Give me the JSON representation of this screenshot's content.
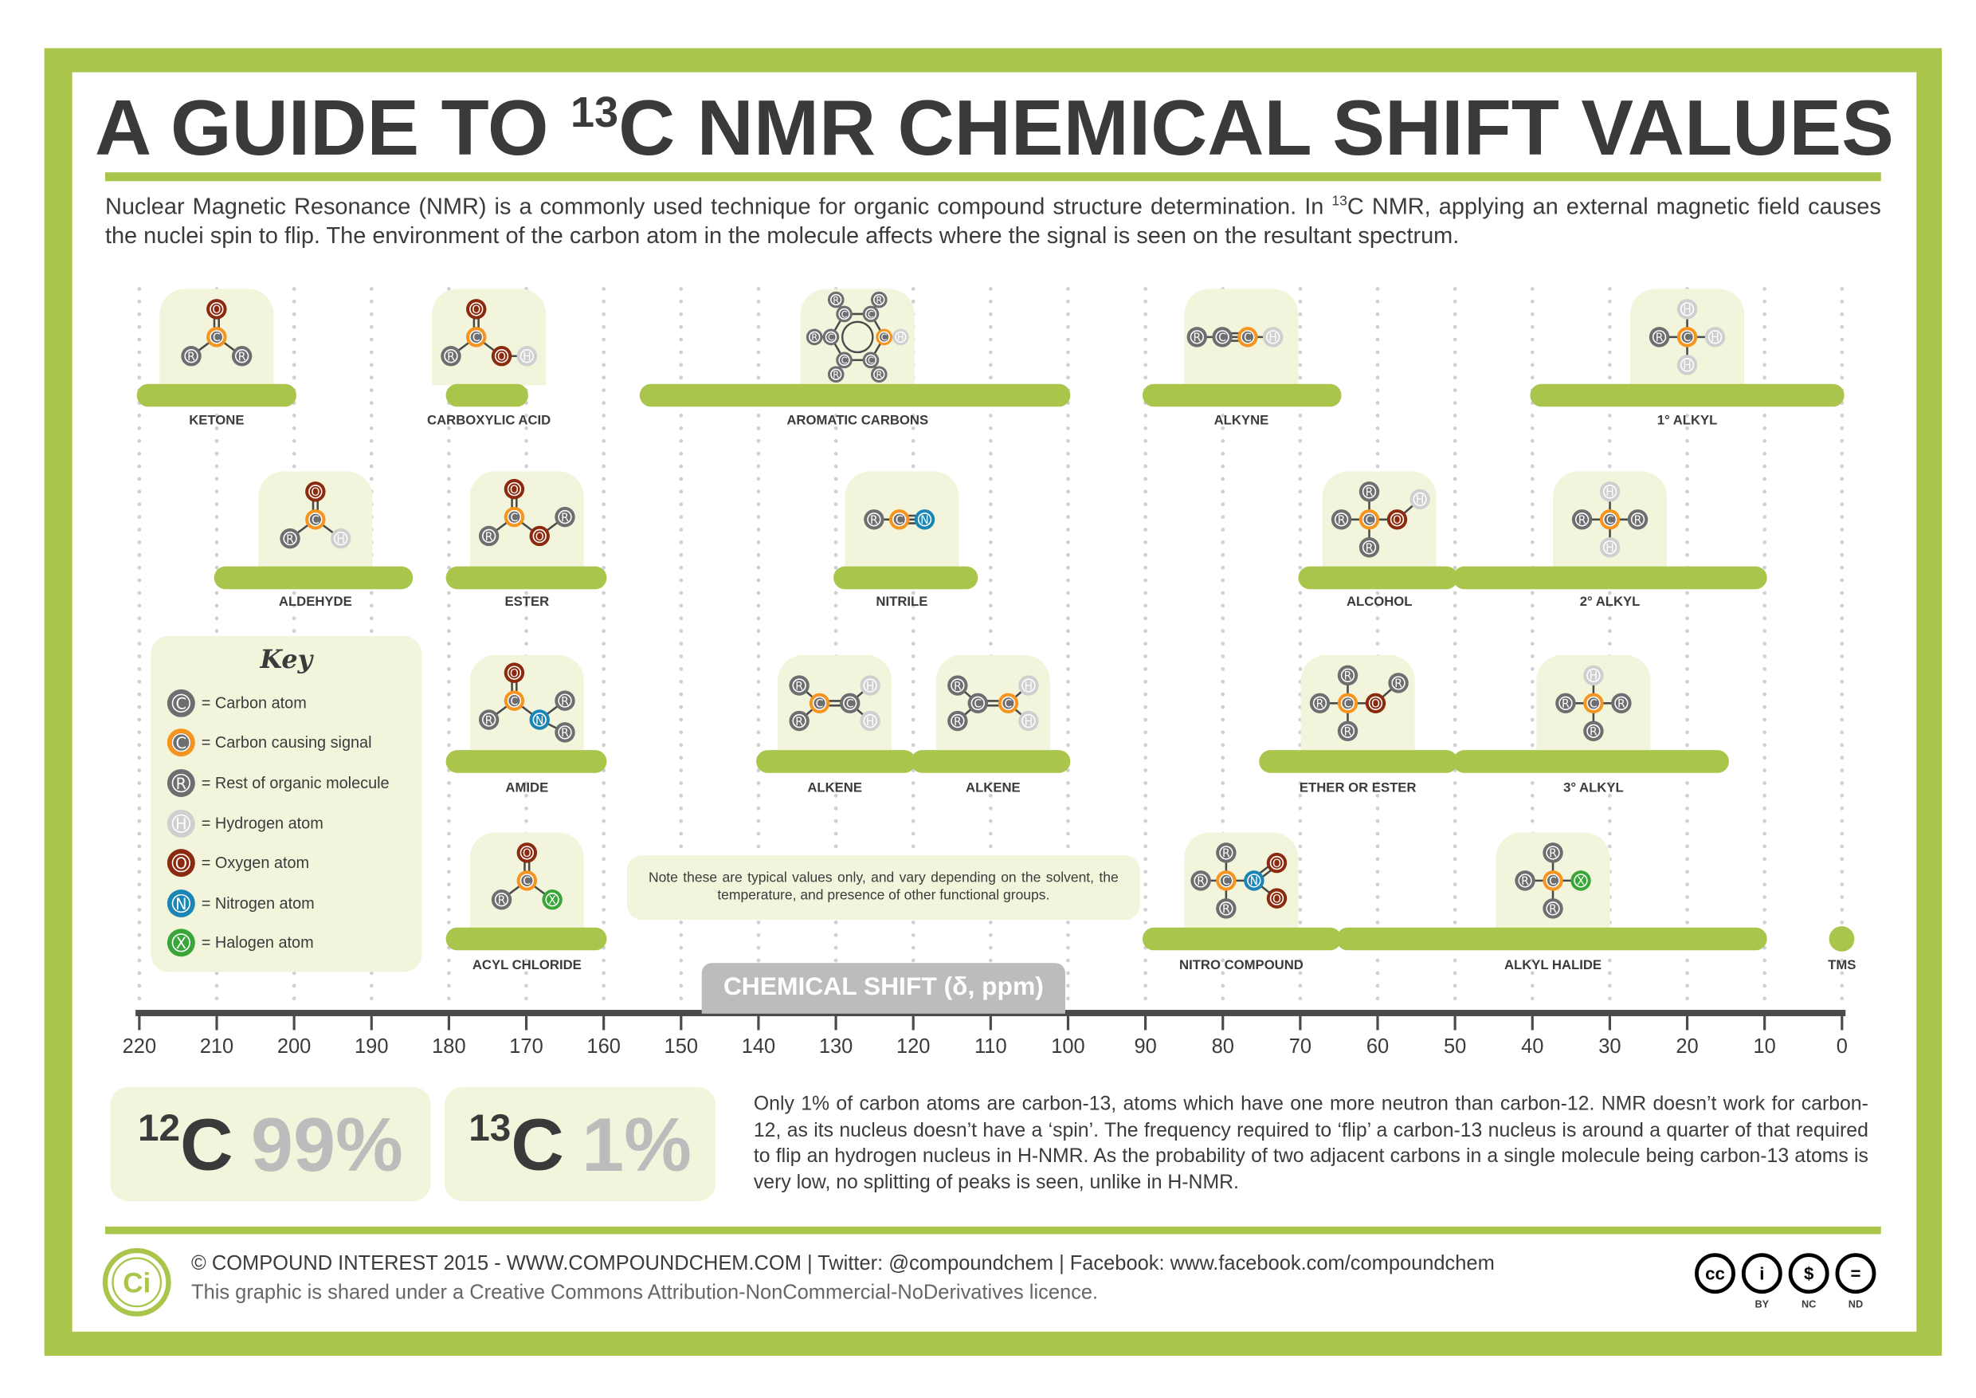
{
  "title": {
    "prefix": "A GUIDE TO ",
    "sup": "13",
    "suffix": "C NMR CHEMICAL SHIFT VALUES"
  },
  "intro": {
    "part1": "Nuclear Magnetic Resonance (NMR) is a commonly used technique for organic compound structure determination. In ",
    "sup": "13",
    "part2": "C NMR, applying an external magnetic field causes the nuclei spin to flip. The environment of the carbon atom in the molecule affects where the signal is seen on the resultant spectrum."
  },
  "colors": {
    "accent": "#a9c54b",
    "card": "#f2f5dc",
    "carbon": "#6d6e70",
    "signal": "#f7941d",
    "rest": "#6d6e70",
    "hydrogen": "#cfcfcf",
    "oxygen": "#8b2a0f",
    "nitrogen": "#1b86b6",
    "halogen": "#3aa63a"
  },
  "key": {
    "title": "Key",
    "items": [
      {
        "type": "C",
        "symbol": "C",
        "label": "= Carbon atom"
      },
      {
        "type": "S",
        "symbol": "C",
        "label": "= Carbon causing signal"
      },
      {
        "type": "R",
        "symbol": "R",
        "label": "= Rest of organic molecule"
      },
      {
        "type": "H",
        "symbol": "H",
        "label": "= Hydrogen atom"
      },
      {
        "type": "O",
        "symbol": "O",
        "label": "= Oxygen atom"
      },
      {
        "type": "N",
        "symbol": "N",
        "label": "= Nitrogen atom"
      },
      {
        "type": "X",
        "symbol": "X",
        "label": "= Halogen atom"
      }
    ]
  },
  "note": "Note these are typical values only, and vary depending on the solvent, the temperature, and presence of other functional groups.",
  "chart_data": {
    "type": "range-bar",
    "xlabel": "CHEMICAL SHIFT (δ, ppm)",
    "xlim": [
      220,
      0
    ],
    "x_reversed": true,
    "xticks": [
      220,
      210,
      200,
      190,
      180,
      170,
      160,
      150,
      140,
      130,
      120,
      110,
      100,
      90,
      80,
      70,
      60,
      50,
      40,
      30,
      20,
      10,
      0
    ],
    "grid": "vertical dotted",
    "ranges": [
      {
        "name": "KETONE",
        "molecule": "ketone",
        "row": 1,
        "from": 220,
        "to": 200
      },
      {
        "name": "CARBOXYLIC ACID",
        "molecule": "carboxylic",
        "row": 1,
        "from": 180,
        "to": 170
      },
      {
        "name": "AROMATIC CARBONS",
        "molecule": "aromatic",
        "row": 1,
        "from": 155,
        "to": 100
      },
      {
        "name": "ALKYNE",
        "molecule": "alkyne",
        "row": 1,
        "from": 90,
        "to": 65
      },
      {
        "name": "1° ALKYL",
        "molecule": "alkyl1",
        "row": 1,
        "from": 40,
        "to": 0
      },
      {
        "name": "ALDEHYDE",
        "molecule": "aldehyde",
        "row": 2,
        "from": 210,
        "to": 185
      },
      {
        "name": "ESTER",
        "molecule": "ester",
        "row": 2,
        "from": 180,
        "to": 160
      },
      {
        "name": "NITRILE",
        "molecule": "nitrile",
        "row": 2,
        "from": 130,
        "to": 112
      },
      {
        "name": "ALCOHOL",
        "molecule": "alcohol",
        "row": 2,
        "from": 70,
        "to": 50
      },
      {
        "name": "2° ALKYL",
        "molecule": "alkyl2",
        "row": 2,
        "from": 50,
        "to": 10
      },
      {
        "name": "AMIDE",
        "molecule": "amide",
        "row": 3,
        "from": 180,
        "to": 160
      },
      {
        "name": "ALKENE",
        "molecule": "alkene1",
        "row": 3,
        "from": 140,
        "to": 120
      },
      {
        "name": "ALKENE",
        "molecule": "alkene2",
        "row": 3,
        "from": 120,
        "to": 100
      },
      {
        "name": "ETHER OR ESTER",
        "molecule": "ether",
        "row": 3,
        "from": 75,
        "to": 50
      },
      {
        "name": "3° ALKYL",
        "molecule": "alkyl3",
        "row": 3,
        "from": 50,
        "to": 15
      },
      {
        "name": "ACYL CHLORIDE",
        "molecule": "acyl",
        "row": 4,
        "from": 180,
        "to": 160
      },
      {
        "name": "NITRO COMPOUND",
        "molecule": "nitro",
        "row": 4,
        "from": 90,
        "to": 65
      },
      {
        "name": "ALKYL HALIDE",
        "molecule": "halide",
        "row": 4,
        "from": 65,
        "to": 10
      },
      {
        "name": "TMS",
        "molecule": "",
        "row": 4,
        "from": 0,
        "to": 0
      }
    ]
  },
  "isotopes": [
    {
      "sup": "12",
      "symbol": "C",
      "percent": "99%"
    },
    {
      "sup": "13",
      "symbol": "C",
      "percent": "1%"
    }
  ],
  "paragraph": "Only 1% of carbon atoms are carbon-13, atoms which have one more neutron than carbon-12. NMR doesn’t work for carbon-12, as its nucleus doesn’t have a ‘spin’. The frequency required to ‘flip’ a carbon-13 nucleus is around a quarter of that required to flip an hydrogen nucleus in H-NMR. As the probability of two adjacent carbons in a single molecule being carbon-13 atoms is very low, no splitting of peaks is seen, unlike in H-NMR.",
  "footer": {
    "logo": "Ci",
    "line1": "© COMPOUND INTEREST 2015 - WWW.COMPOUNDCHEM.COM | Twitter: @compoundchem | Facebook: www.facebook.com/compoundchem",
    "line2": "This graphic is shared under a Creative Commons Attribution-NonCommercial-NoDerivatives licence.",
    "license_icons": [
      {
        "glyph": "cc",
        "label": ""
      },
      {
        "glyph": "i",
        "label": "BY"
      },
      {
        "glyph": "$",
        "label": "NC"
      },
      {
        "glyph": "=",
        "label": "ND"
      }
    ]
  }
}
